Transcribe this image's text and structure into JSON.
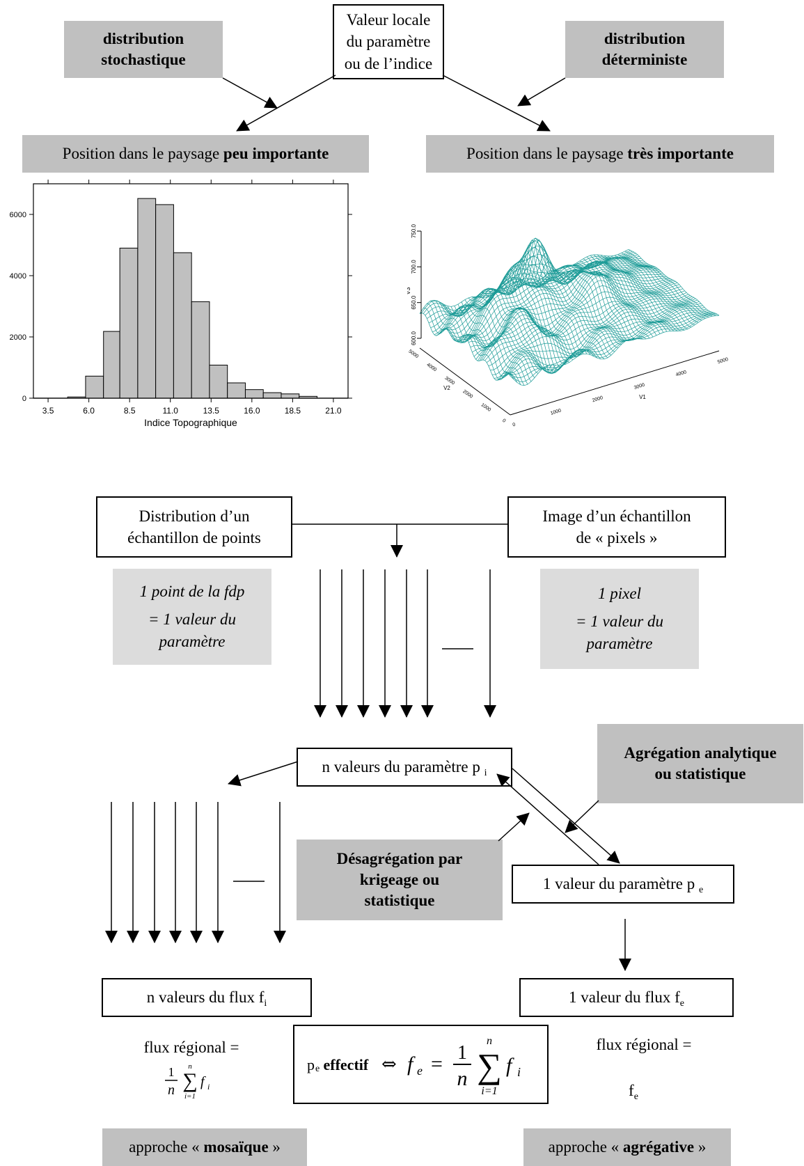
{
  "top": {
    "center_box": [
      "Valeur locale",
      "du paramètre",
      "ou de l’indice"
    ],
    "left_box": [
      "distribution",
      "stochastique"
    ],
    "right_box": [
      "distribution",
      "déterministe"
    ],
    "left_position": {
      "pre": "Position dans le paysage ",
      "bold": "peu importante"
    },
    "right_position": {
      "pre": "Position dans le paysage ",
      "bold": "très importante"
    }
  },
  "histogram": {
    "xlabel": "Indice Topographique",
    "y_ticks": [
      "0",
      "2000",
      "4000",
      "6000"
    ],
    "x_ticks": [
      "3.5",
      "6.0",
      "8.5",
      "11.0",
      "13.5",
      "16.0",
      "18.5",
      "21.0"
    ]
  },
  "chart_data": {
    "type": "bar",
    "xlabel": "Indice Topographique",
    "ylim": [
      0,
      7000
    ],
    "xlim": [
      2.6,
      21.9
    ],
    "bin_edges": [
      4.7,
      5.8,
      6.9,
      7.9,
      9.0,
      10.1,
      11.2,
      12.3,
      13.4,
      14.5,
      15.6,
      16.7,
      17.8,
      18.9,
      20.0
    ],
    "values": [
      40,
      720,
      2180,
      4900,
      6520,
      6320,
      4750,
      3150,
      1080,
      500,
      280,
      180,
      140,
      60
    ],
    "y_ticks": [
      0,
      2000,
      4000,
      6000
    ],
    "x_ticks": [
      3.5,
      6.0,
      8.5,
      11.0,
      13.5,
      16.0,
      18.5,
      21.0
    ]
  },
  "surface": {
    "color": "#1a9a96",
    "z_label": "V3",
    "z_ticks": [
      "600.0",
      "650.0",
      "700.0",
      "750.0"
    ],
    "x_label": "V1",
    "x_ticks": [
      "0",
      "1000",
      "2000",
      "3000",
      "4000",
      "5000"
    ],
    "y_label": "V2",
    "y_ticks": [
      "0",
      "1000",
      "2000",
      "3000",
      "4000",
      "5000"
    ]
  },
  "middle": {
    "left_box": [
      "Distribution d’un",
      "échantillon de points"
    ],
    "right_box": [
      "Image d’un échantillon",
      "de « pixels »"
    ],
    "left_note": [
      "1 point de la fdp",
      "= 1 valeur du",
      "paramètre"
    ],
    "right_note": [
      "1 pixel",
      "= 1 valeur du",
      "paramètre"
    ],
    "n_values_box": {
      "text": "n valeurs du paramètre p",
      "sub": "i"
    },
    "agg_box": [
      "Agrégation analytique",
      "ou statistique"
    ],
    "disagg_box": [
      "Désagrégation par",
      "krigeage ou",
      "statistique"
    ],
    "one_value_box": {
      "text": "1 valeur du paramètre p",
      "sub": "e"
    }
  },
  "bottom": {
    "flux_n_box": {
      "text": "n valeurs du flux f",
      "sub": "i"
    },
    "flux_1_box": {
      "text": "1 valeur du flux f",
      "sub": "e"
    },
    "left_flux_label": "flux régional =",
    "right_flux_label": "flux régional =",
    "right_flux_value": "f",
    "right_flux_value_sub": "e",
    "formula": {
      "p": "p",
      "p_sub": "e",
      "bold": " effectif ",
      "equiv": "⇔",
      "f": "f",
      "f_sub": "e",
      "eq": "=",
      "one": "1",
      "n": "n",
      "sum_top": "n",
      "sum_bottom": "i=1",
      "fi": "f",
      "fi_sub": "i"
    },
    "left_approach": {
      "pre": "approche « ",
      "bold": "mosaïque",
      "post": " »"
    },
    "right_approach": {
      "pre": "approche « ",
      "bold": "agrégative",
      "post": " »"
    }
  }
}
